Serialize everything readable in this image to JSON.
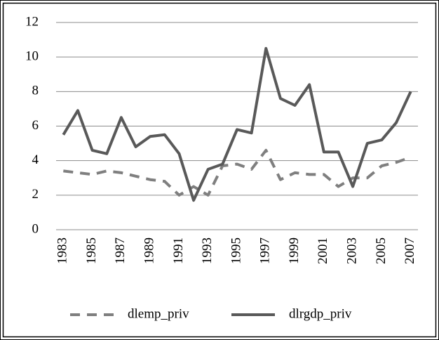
{
  "chart_data": {
    "type": "line",
    "categories": [
      "1983",
      null,
      "1985",
      null,
      "1987",
      null,
      "1989",
      null,
      "1991",
      null,
      "1993",
      null,
      "1995",
      null,
      "1997",
      null,
      "1999",
      null,
      "2001",
      null,
      "2003",
      null,
      "2005",
      null,
      "2007"
    ],
    "series": [
      {
        "name": "dlemp_priv",
        "color": "#7f7f7f",
        "style": "dashed",
        "values": [
          3.4,
          3.3,
          3.2,
          3.4,
          3.3,
          3.1,
          2.9,
          2.8,
          2.0,
          2.5,
          2.0,
          3.7,
          3.8,
          3.5,
          4.6,
          2.9,
          3.3,
          3.2,
          3.2,
          2.5,
          3.0,
          3.0,
          3.7,
          3.9,
          4.2
        ]
      },
      {
        "name": "dlrgdp_priv",
        "color": "#595959",
        "style": "solid",
        "values": [
          5.5,
          6.9,
          4.6,
          4.4,
          6.5,
          4.8,
          5.4,
          5.5,
          4.4,
          1.7,
          3.5,
          3.8,
          5.8,
          5.6,
          10.5,
          7.6,
          7.2,
          8.4,
          4.5,
          4.5,
          2.5,
          5.0,
          5.2,
          6.2,
          8.0
        ]
      }
    ],
    "ylim": [
      0,
      12
    ],
    "yticks": [
      0,
      2,
      4,
      6,
      8,
      10,
      12
    ],
    "grid": true,
    "legend": "bottom"
  }
}
